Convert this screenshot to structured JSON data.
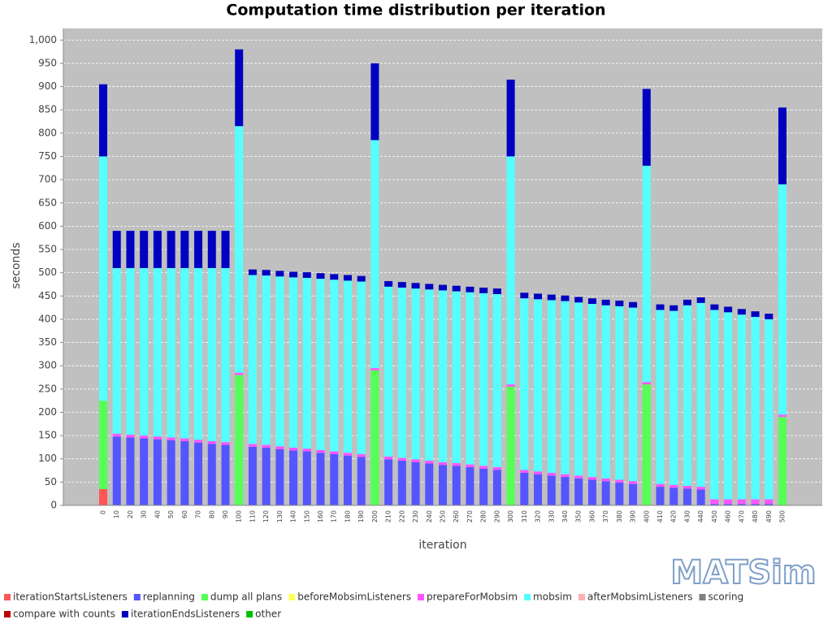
{
  "chart_data": {
    "type": "stacked-bar",
    "title": "Computation time distribution per iteration",
    "x_label": "iteration",
    "y_label": "seconds",
    "logo": "MATSim",
    "categories": [
      0,
      10,
      20,
      30,
      40,
      50,
      60,
      70,
      80,
      90,
      100,
      110,
      120,
      130,
      140,
      150,
      160,
      170,
      180,
      190,
      200,
      210,
      220,
      230,
      240,
      250,
      260,
      270,
      280,
      290,
      300,
      310,
      320,
      330,
      340,
      350,
      360,
      370,
      380,
      390,
      400,
      410,
      420,
      430,
      440,
      450,
      460,
      470,
      480,
      490,
      500
    ],
    "ylim": [
      0,
      1025
    ],
    "yticks": [
      0,
      50,
      100,
      150,
      200,
      250,
      300,
      350,
      400,
      450,
      500,
      550,
      600,
      650,
      700,
      750,
      800,
      850,
      900,
      950,
      {
        "value": 1000,
        "label": "1,000"
      }
    ],
    "grid": true,
    "series": [
      {
        "name": "iterationStartsListeners",
        "color": "#ff5555",
        "values": [
          35,
          0,
          0,
          0,
          0,
          0,
          0,
          0,
          0,
          0,
          0,
          0,
          0,
          0,
          0,
          0,
          0,
          0,
          0,
          0,
          0,
          0,
          0,
          0,
          0,
          0,
          0,
          0,
          0,
          0,
          0,
          0,
          0,
          0,
          0,
          0,
          0,
          0,
          0,
          0,
          0,
          0,
          0,
          0,
          0,
          0,
          0,
          0,
          0,
          0,
          0
        ]
      },
      {
        "name": "replanning",
        "color": "#5555ff",
        "values": [
          0,
          148,
          146,
          144,
          142,
          140,
          138,
          135,
          132,
          130,
          0,
          126,
          124,
          121,
          118,
          116,
          113,
          110,
          107,
          104,
          0,
          99,
          96,
          93,
          90,
          87,
          85,
          82,
          79,
          76,
          0,
          70,
          67,
          64,
          61,
          58,
          55,
          52,
          49,
          46,
          0,
          40,
          38,
          36,
          34,
          3,
          3,
          3,
          3,
          3,
          0
        ]
      },
      {
        "name": "dump all plans",
        "color": "#55ff55",
        "values": [
          190,
          0,
          0,
          0,
          0,
          0,
          0,
          0,
          0,
          0,
          280,
          0,
          0,
          0,
          0,
          0,
          0,
          0,
          0,
          0,
          290,
          0,
          0,
          0,
          0,
          0,
          0,
          0,
          0,
          0,
          255,
          0,
          0,
          0,
          0,
          0,
          0,
          0,
          0,
          0,
          260,
          0,
          0,
          0,
          0,
          0,
          0,
          0,
          0,
          0,
          190
        ]
      },
      {
        "name": "beforeMobsimListeners",
        "color": "#ffff55",
        "values": [
          0,
          0,
          0,
          0,
          0,
          0,
          0,
          0,
          0,
          0,
          0,
          0,
          0,
          0,
          0,
          0,
          0,
          0,
          0,
          0,
          0,
          0,
          0,
          0,
          0,
          0,
          0,
          0,
          0,
          0,
          0,
          0,
          0,
          0,
          0,
          0,
          0,
          0,
          0,
          0,
          0,
          0,
          0,
          0,
          0,
          0,
          0,
          0,
          0,
          0,
          0
        ]
      },
      {
        "name": "prepareForMobsim",
        "color": "#ff55ff",
        "values": [
          0,
          6,
          6,
          6,
          6,
          6,
          6,
          6,
          6,
          6,
          5,
          6,
          6,
          6,
          6,
          6,
          6,
          6,
          6,
          6,
          5,
          6,
          6,
          6,
          6,
          6,
          6,
          6,
          6,
          6,
          5,
          6,
          6,
          6,
          6,
          6,
          6,
          6,
          6,
          6,
          5,
          6,
          6,
          6,
          6,
          10,
          10,
          10,
          10,
          10,
          5
        ]
      },
      {
        "name": "mobsim",
        "color": "#55ffff",
        "values": [
          525,
          356,
          358,
          360,
          362,
          364,
          366,
          369,
          372,
          374,
          530,
          363,
          364,
          365,
          366,
          367,
          368,
          369,
          370,
          371,
          490,
          365,
          366,
          367,
          368,
          369,
          369,
          370,
          371,
          372,
          490,
          369,
          370,
          371,
          372,
          372,
          372,
          372,
          373,
          373,
          465,
          374,
          374,
          388,
          395,
          407,
          402,
          397,
          392,
          387,
          495
        ]
      },
      {
        "name": "afterMobsimListeners",
        "color": "#ffafaf",
        "values": [
          0,
          0,
          0,
          0,
          0,
          0,
          0,
          0,
          0,
          0,
          0,
          0,
          0,
          0,
          0,
          0,
          0,
          0,
          0,
          0,
          0,
          0,
          0,
          0,
          0,
          0,
          0,
          0,
          0,
          0,
          0,
          0,
          0,
          0,
          0,
          0,
          0,
          0,
          0,
          0,
          0,
          0,
          0,
          0,
          0,
          0,
          0,
          0,
          0,
          0,
          0
        ]
      },
      {
        "name": "scoring",
        "color": "#808080",
        "values": [
          0,
          0,
          0,
          0,
          0,
          0,
          0,
          0,
          0,
          0,
          0,
          0,
          0,
          0,
          0,
          0,
          0,
          0,
          0,
          0,
          0,
          0,
          0,
          0,
          0,
          0,
          0,
          0,
          0,
          0,
          0,
          0,
          0,
          0,
          0,
          0,
          0,
          0,
          0,
          0,
          0,
          0,
          0,
          0,
          0,
          0,
          0,
          0,
          0,
          0,
          0
        ]
      },
      {
        "name": "compare with counts",
        "color": "#c00000",
        "values": [
          0,
          0,
          0,
          0,
          0,
          0,
          0,
          0,
          0,
          0,
          0,
          0,
          0,
          0,
          0,
          0,
          0,
          0,
          0,
          0,
          0,
          0,
          0,
          0,
          0,
          0,
          0,
          0,
          0,
          0,
          0,
          0,
          0,
          0,
          0,
          0,
          0,
          0,
          0,
          0,
          0,
          0,
          0,
          0,
          0,
          0,
          0,
          0,
          0,
          0,
          0
        ]
      },
      {
        "name": "iterationEndsListeners",
        "color": "#0000c0",
        "values": [
          155,
          80,
          80,
          80,
          80,
          80,
          80,
          80,
          80,
          80,
          165,
          12,
          12,
          12,
          12,
          12,
          12,
          12,
          12,
          12,
          165,
          12,
          12,
          12,
          12,
          12,
          12,
          12,
          12,
          12,
          165,
          12,
          12,
          12,
          12,
          12,
          12,
          12,
          12,
          12,
          165,
          12,
          12,
          12,
          12,
          12,
          12,
          12,
          12,
          12,
          165
        ]
      },
      {
        "name": "other",
        "color": "#00c000",
        "values": [
          0,
          0,
          0,
          0,
          0,
          0,
          0,
          0,
          0,
          0,
          0,
          0,
          0,
          0,
          0,
          0,
          0,
          0,
          0,
          0,
          0,
          0,
          0,
          0,
          0,
          0,
          0,
          0,
          0,
          0,
          0,
          0,
          0,
          0,
          0,
          0,
          0,
          0,
          0,
          0,
          0,
          0,
          0,
          0,
          0,
          0,
          0,
          0,
          0,
          0,
          0
        ]
      }
    ]
  }
}
